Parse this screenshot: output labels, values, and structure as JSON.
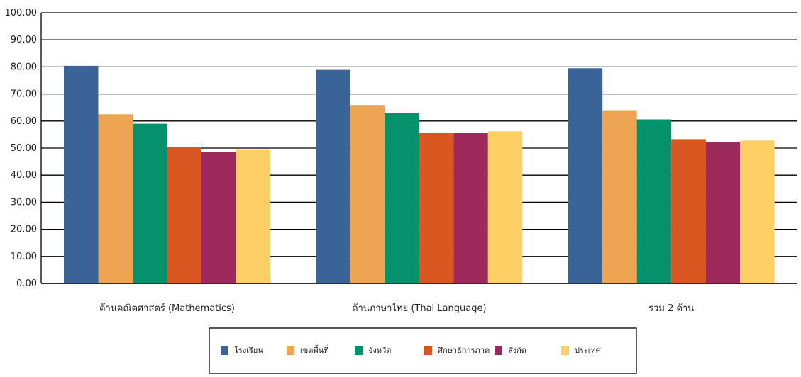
{
  "chart_data": {
    "type": "bar",
    "categories": [
      "ด้านคณิตศาสตร์ (Mathematics)",
      "ด้านภาษาไทย (Thai Language)",
      "รวม 2 ด้าน"
    ],
    "series": [
      {
        "name": "โรงเรียน",
        "color": "#3a6497",
        "values": [
          80.4,
          78.9,
          79.5
        ]
      },
      {
        "name": "เขตพื้นที่",
        "color": "#eda554",
        "values": [
          62.5,
          65.9,
          64.0
        ]
      },
      {
        "name": "จังหวัด",
        "color": "#05916b",
        "values": [
          59.0,
          63.0,
          60.6
        ]
      },
      {
        "name": "ศึกษาธิการภาค",
        "color": "#da5621",
        "values": [
          50.5,
          55.7,
          53.3
        ]
      },
      {
        "name": "สังกัด",
        "color": "#9e2a5d",
        "values": [
          48.6,
          55.7,
          52.2
        ]
      },
      {
        "name": "ประเทศ",
        "color": "#fdcf65",
        "values": [
          49.6,
          56.2,
          52.8
        ]
      }
    ],
    "yticks": [
      "0.00",
      "10.00",
      "20.00",
      "30.00",
      "40.00",
      "50.00",
      "60.00",
      "70.00",
      "80.00",
      "90.00",
      "100.00"
    ],
    "ylim": [
      0,
      100
    ],
    "grid": true,
    "legend_position": "bottom"
  }
}
